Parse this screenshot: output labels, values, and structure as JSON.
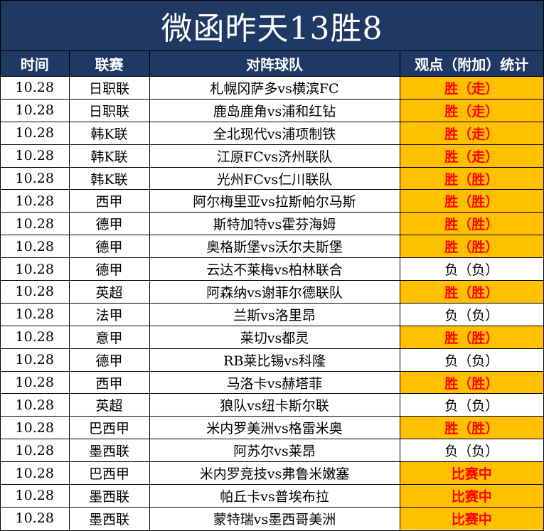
{
  "title": "微函昨天13胜8",
  "headers": {
    "time": "时间",
    "league": "联赛",
    "match": "对阵球队",
    "result": "观点（附加）统计"
  },
  "colors": {
    "header_bg": "#1f3864",
    "highlight_bg": "#ffc000",
    "highlight_text": "#ff0000"
  },
  "rows": [
    {
      "time": "10.28",
      "league": "日职联",
      "match": "札幌冈萨多vs横滨FC",
      "result": "胜（走）",
      "status": "win"
    },
    {
      "time": "10.28",
      "league": "日职联",
      "match": "鹿岛鹿角vs浦和红钻",
      "result": "胜（走）",
      "status": "win"
    },
    {
      "time": "10.28",
      "league": "韩K联",
      "match": "全北现代vs浦项制铁",
      "result": "胜（走）",
      "status": "win"
    },
    {
      "time": "10.28",
      "league": "韩K联",
      "match": "江原FCvs济州联队",
      "result": "胜（走）",
      "status": "win"
    },
    {
      "time": "10.28",
      "league": "韩K联",
      "match": "光州FCvs仁川联队",
      "result": "胜（胜）",
      "status": "win"
    },
    {
      "time": "10.28",
      "league": "西甲",
      "match": "阿尔梅里亚vs拉斯帕尔马斯",
      "result": "胜（胜）",
      "status": "win"
    },
    {
      "time": "10.28",
      "league": "德甲",
      "match": "斯特加特vs霍芬海姆",
      "result": "胜（胜）",
      "status": "win"
    },
    {
      "time": "10.28",
      "league": "德甲",
      "match": "奥格斯堡vs沃尔夫斯堡",
      "result": "胜（胜）",
      "status": "win"
    },
    {
      "time": "10.28",
      "league": "德甲",
      "match": "云达不莱梅vs柏林联合",
      "result": "负（负）",
      "status": "lose"
    },
    {
      "time": "10.28",
      "league": "英超",
      "match": "阿森纳vs谢菲尔德联队",
      "result": "胜（胜）",
      "status": "win"
    },
    {
      "time": "10.28",
      "league": "法甲",
      "match": "兰斯vs洛里昂",
      "result": "负（负）",
      "status": "lose"
    },
    {
      "time": "10.28",
      "league": "意甲",
      "match": "莱切vs都灵",
      "result": "胜（胜）",
      "status": "win"
    },
    {
      "time": "10.28",
      "league": "德甲",
      "match": "RB莱比锡vs科隆",
      "result": "负（负）",
      "status": "lose"
    },
    {
      "time": "10.28",
      "league": "西甲",
      "match": "马洛卡vs赫塔菲",
      "result": "胜（胜）",
      "status": "win"
    },
    {
      "time": "10.28",
      "league": "英超",
      "match": "狼队vs纽卡斯尔联",
      "result": "负（负）",
      "status": "lose"
    },
    {
      "time": "10.28",
      "league": "巴西甲",
      "match": "米内罗美洲vs格雷米奥",
      "result": "胜（胜）",
      "status": "win"
    },
    {
      "time": "10.28",
      "league": "墨西联",
      "match": "阿苏尔vs莱昂",
      "result": "负（负）",
      "status": "lose"
    },
    {
      "time": "10.28",
      "league": "巴西甲",
      "match": "米内罗竞技vs弗鲁米嫩塞",
      "result": "比赛中",
      "status": "live"
    },
    {
      "time": "10.28",
      "league": "墨西联",
      "match": "帕丘卡vs普埃布拉",
      "result": "比赛中",
      "status": "live"
    },
    {
      "time": "10.28",
      "league": "墨西联",
      "match": "蒙特瑞vs墨西哥美洲",
      "result": "比赛中",
      "status": "live"
    }
  ]
}
